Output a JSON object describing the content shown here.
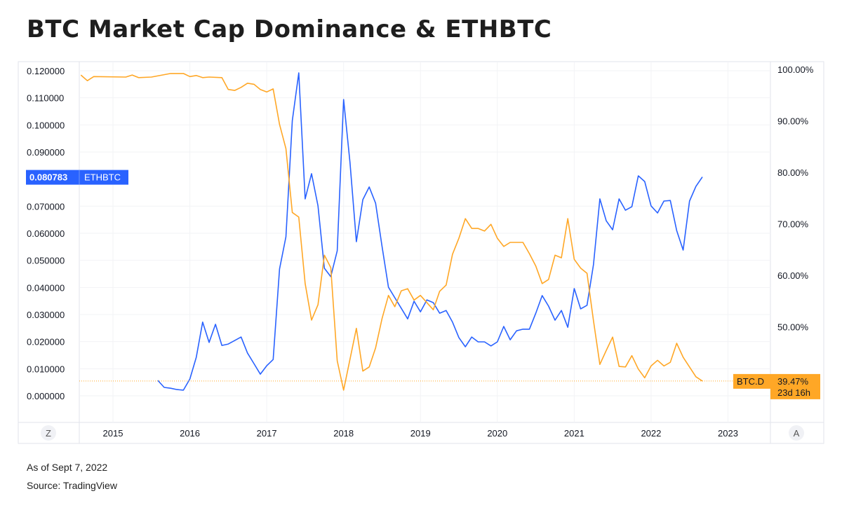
{
  "title": "BTC Market Cap Dominance & ETHBTC",
  "footer": {
    "as_of": "As of Sept 7, 2022",
    "source": "Source: TradingView"
  },
  "buttons": {
    "left_scale": "Z",
    "right_scale": "A"
  },
  "chart_data": {
    "type": "line",
    "x_ticks": [
      "2015",
      "2016",
      "2017",
      "2018",
      "2019",
      "2020",
      "2021",
      "2022",
      "2023"
    ],
    "left_axis": {
      "ticks": [
        "0.120000",
        "0.110000",
        "0.100000",
        "0.090000",
        "0.070000",
        "0.060000",
        "0.050000",
        "0.040000",
        "0.030000",
        "0.020000",
        "0.010000",
        "0.000000"
      ],
      "range": [
        0,
        0.12
      ]
    },
    "right_axis": {
      "ticks": [
        "100.00%",
        "90.00%",
        "80.00%",
        "70.00%",
        "60.00%",
        "50.00%"
      ],
      "range": [
        38,
        100
      ]
    },
    "grid": true,
    "series": [
      {
        "name": "ETHBTC",
        "axis": "left",
        "color": "#2962ff",
        "last_label": "0.080783",
        "points": [
          [
            "2015-08",
            0.0057
          ],
          [
            "2015-09",
            0.0031
          ],
          [
            "2015-10",
            0.0028
          ],
          [
            "2015-11",
            0.0023
          ],
          [
            "2015-12",
            0.0021
          ],
          [
            "2016-01",
            0.0062
          ],
          [
            "2016-02",
            0.0142
          ],
          [
            "2016-03",
            0.0272
          ],
          [
            "2016-04",
            0.0197
          ],
          [
            "2016-05",
            0.0264
          ],
          [
            "2016-06",
            0.0186
          ],
          [
            "2016-07",
            0.0191
          ],
          [
            "2016-08",
            0.0204
          ],
          [
            "2016-09",
            0.0217
          ],
          [
            "2016-10",
            0.0158
          ],
          [
            "2016-11",
            0.0119
          ],
          [
            "2016-12",
            0.008
          ],
          [
            "2017-01",
            0.0111
          ],
          [
            "2017-02",
            0.0134
          ],
          [
            "2017-03",
            0.0468
          ],
          [
            "2017-04",
            0.0587
          ],
          [
            "2017-05",
            0.1016
          ],
          [
            "2017-06",
            0.1192
          ],
          [
            "2017-07",
            0.0727
          ],
          [
            "2017-08",
            0.082
          ],
          [
            "2017-09",
            0.0701
          ],
          [
            "2017-10",
            0.0471
          ],
          [
            "2017-11",
            0.044
          ],
          [
            "2017-12",
            0.0535
          ],
          [
            "2018-01",
            0.1094
          ],
          [
            "2018-02",
            0.0861
          ],
          [
            "2018-03",
            0.0569
          ],
          [
            "2018-04",
            0.0724
          ],
          [
            "2018-05",
            0.0771
          ],
          [
            "2018-06",
            0.0711
          ],
          [
            "2018-07",
            0.0551
          ],
          [
            "2018-08",
            0.0401
          ],
          [
            "2018-09",
            0.0362
          ],
          [
            "2018-10",
            0.0323
          ],
          [
            "2018-11",
            0.0284
          ],
          [
            "2018-12",
            0.0349
          ],
          [
            "2019-01",
            0.031
          ],
          [
            "2019-02",
            0.0354
          ],
          [
            "2019-03",
            0.0344
          ],
          [
            "2019-04",
            0.0305
          ],
          [
            "2019-05",
            0.0315
          ],
          [
            "2019-06",
            0.0272
          ],
          [
            "2019-07",
            0.0215
          ],
          [
            "2019-08",
            0.0181
          ],
          [
            "2019-09",
            0.0217
          ],
          [
            "2019-10",
            0.0199
          ],
          [
            "2019-11",
            0.0199
          ],
          [
            "2019-12",
            0.0184
          ],
          [
            "2020-01",
            0.0199
          ],
          [
            "2020-02",
            0.0256
          ],
          [
            "2020-03",
            0.0207
          ],
          [
            "2020-04",
            0.024
          ],
          [
            "2020-05",
            0.0246
          ],
          [
            "2020-06",
            0.0246
          ],
          [
            "2020-07",
            0.0305
          ],
          [
            "2020-08",
            0.037
          ],
          [
            "2020-09",
            0.0331
          ],
          [
            "2020-10",
            0.0279
          ],
          [
            "2020-11",
            0.0315
          ],
          [
            "2020-12",
            0.0253
          ],
          [
            "2021-01",
            0.0396
          ],
          [
            "2021-02",
            0.0321
          ],
          [
            "2021-03",
            0.0334
          ],
          [
            "2021-04",
            0.0484
          ],
          [
            "2021-05",
            0.0727
          ],
          [
            "2021-06",
            0.0646
          ],
          [
            "2021-07",
            0.0613
          ],
          [
            "2021-08",
            0.0727
          ],
          [
            "2021-09",
            0.0685
          ],
          [
            "2021-10",
            0.0698
          ],
          [
            "2021-11",
            0.0812
          ],
          [
            "2021-12",
            0.0791
          ],
          [
            "2022-01",
            0.0701
          ],
          [
            "2022-02",
            0.0675
          ],
          [
            "2022-03",
            0.0719
          ],
          [
            "2022-04",
            0.0721
          ],
          [
            "2022-05",
            0.061
          ],
          [
            "2022-06",
            0.0538
          ],
          [
            "2022-07",
            0.0719
          ],
          [
            "2022-08",
            0.0773
          ],
          [
            "2022-09",
            0.080783
          ]
        ]
      },
      {
        "name": "BTC.D",
        "axis": "right",
        "color": "#ffa726",
        "last_label": "39.47%",
        "countdown": "23d 16h",
        "points": [
          [
            "2014-08",
            98.9
          ],
          [
            "2014-09",
            97.8
          ],
          [
            "2014-10",
            98.6
          ],
          [
            "2015-03",
            98.5
          ],
          [
            "2015-04",
            98.9
          ],
          [
            "2015-05",
            98.4
          ],
          [
            "2015-07",
            98.5
          ],
          [
            "2015-10",
            99.2
          ],
          [
            "2015-12",
            99.2
          ],
          [
            "2016-01",
            98.6
          ],
          [
            "2016-02",
            98.8
          ],
          [
            "2016-03",
            98.4
          ],
          [
            "2016-04",
            98.5
          ],
          [
            "2016-06",
            98.4
          ],
          [
            "2016-07",
            96.1
          ],
          [
            "2016-08",
            95.9
          ],
          [
            "2016-09",
            96.5
          ],
          [
            "2016-10",
            97.3
          ],
          [
            "2016-11",
            97.1
          ],
          [
            "2016-12",
            96.1
          ],
          [
            "2017-01",
            95.6
          ],
          [
            "2017-02",
            96.2
          ],
          [
            "2017-03",
            89.3
          ],
          [
            "2017-04",
            84.6
          ],
          [
            "2017-05",
            72.2
          ],
          [
            "2017-06",
            71.3
          ],
          [
            "2017-07",
            58.4
          ],
          [
            "2017-08",
            51.3
          ],
          [
            "2017-09",
            54.3
          ],
          [
            "2017-10",
            63.9
          ],
          [
            "2017-11",
            61.5
          ],
          [
            "2017-12",
            43.4
          ],
          [
            "2018-01",
            37.7
          ],
          [
            "2018-03",
            49.7
          ],
          [
            "2018-04",
            41.4
          ],
          [
            "2018-05",
            42.2
          ],
          [
            "2018-06",
            45.9
          ],
          [
            "2018-07",
            51.6
          ],
          [
            "2018-08",
            56.1
          ],
          [
            "2018-09",
            53.9
          ],
          [
            "2018-10",
            57.0
          ],
          [
            "2018-11",
            57.4
          ],
          [
            "2018-12",
            55.2
          ],
          [
            "2019-01",
            56.1
          ],
          [
            "2019-03",
            53.3
          ],
          [
            "2019-04",
            56.9
          ],
          [
            "2019-05",
            58.1
          ],
          [
            "2019-06",
            64.1
          ],
          [
            "2019-07",
            67.2
          ],
          [
            "2019-08",
            71.0
          ],
          [
            "2019-09",
            69.1
          ],
          [
            "2019-10",
            69.1
          ],
          [
            "2019-11",
            68.6
          ],
          [
            "2019-12",
            69.9
          ],
          [
            "2020-01",
            67.2
          ],
          [
            "2020-02",
            65.6
          ],
          [
            "2020-03",
            66.4
          ],
          [
            "2020-05",
            66.4
          ],
          [
            "2020-06",
            64.2
          ],
          [
            "2020-07",
            61.8
          ],
          [
            "2020-08",
            58.4
          ],
          [
            "2020-09",
            59.2
          ],
          [
            "2020-10",
            63.9
          ],
          [
            "2020-11",
            63.4
          ],
          [
            "2020-12",
            71.0
          ],
          [
            "2021-01",
            63.1
          ],
          [
            "2021-02",
            61.4
          ],
          [
            "2021-03",
            60.4
          ],
          [
            "2021-04",
            51.2
          ],
          [
            "2021-05",
            42.7
          ],
          [
            "2021-06",
            45.4
          ],
          [
            "2021-07",
            48.0
          ],
          [
            "2021-08",
            42.3
          ],
          [
            "2021-09",
            42.2
          ],
          [
            "2021-10",
            44.4
          ],
          [
            "2021-11",
            41.8
          ],
          [
            "2021-12",
            40.1
          ],
          [
            "2022-01",
            42.4
          ],
          [
            "2022-02",
            43.5
          ],
          [
            "2022-03",
            42.4
          ],
          [
            "2022-04",
            43.1
          ],
          [
            "2022-05",
            46.8
          ],
          [
            "2022-06",
            44.1
          ],
          [
            "2022-08",
            40.3
          ],
          [
            "2022-09",
            39.47
          ]
        ]
      }
    ]
  }
}
